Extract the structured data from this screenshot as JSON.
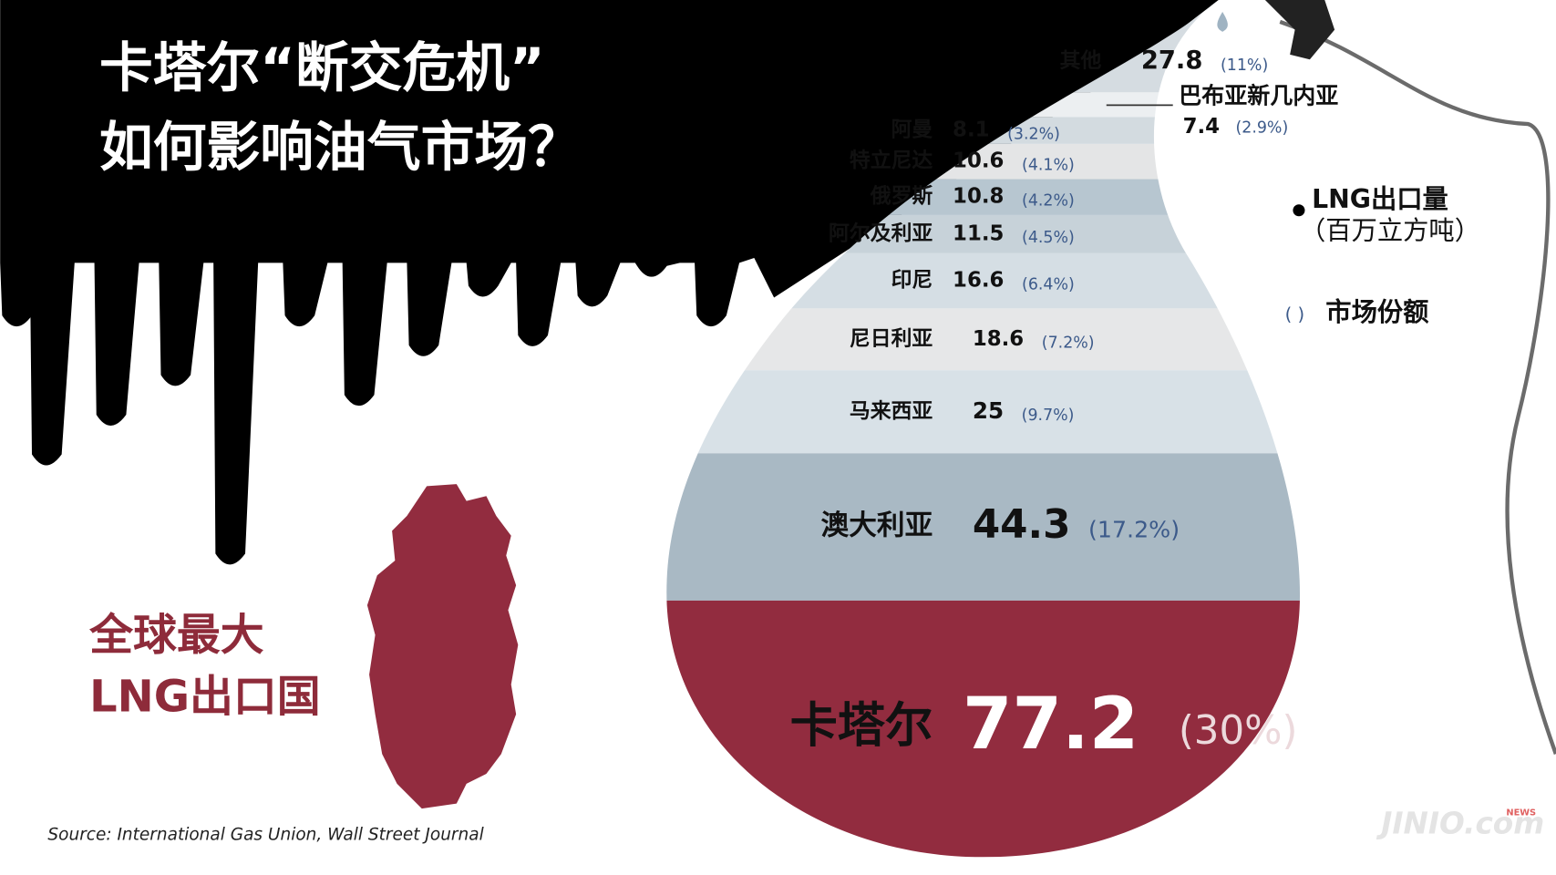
{
  "chart_data": {
    "type": "drop",
    "title": [
      "卡塔尔“断交危机”",
      "如何影响油气市场？"
    ],
    "annotation": [
      "全球最大",
      "LNG出口国"
    ],
    "categories": [
      "其他",
      "巴布亚新几内亚",
      "阿曼",
      "特立尼达",
      "俄罗斯",
      "阿尔及利亚",
      "印尼",
      "尼日利亚",
      "马来西亚",
      "澳大利亚",
      "卡塔尔"
    ],
    "values": [
      27.8,
      7.4,
      8.1,
      10.6,
      10.8,
      11.5,
      16.6,
      18.6,
      25,
      44.3,
      77.2
    ],
    "share_labels": [
      "(11%)",
      "(2.9%)",
      "(3.2%)",
      "(4.1%)",
      "(4.2%)",
      "(4.5%)",
      "(6.4%)",
      "(7.2%)",
      "(9.7%)",
      "(17.2%)",
      "(30%)"
    ],
    "colors": [
      "#d5dce1",
      "#eceff1",
      "#d3dbe0",
      "#e4e5e6",
      "#b7c6d0",
      "#c7d2d9",
      "#d5dee4",
      "#e6e7e8",
      "#d8e1e7",
      "#a9b9c4",
      "#922c3f"
    ],
    "legend": {
      "value": "LNG出口量",
      "unit": "（百万立方吨）",
      "share_marker": "( )",
      "share": "市场份额"
    },
    "source": "Source: International Gas Union, Wall Street Journal",
    "watermark": "JINIO.com",
    "watermark_tag": "NEWS"
  }
}
